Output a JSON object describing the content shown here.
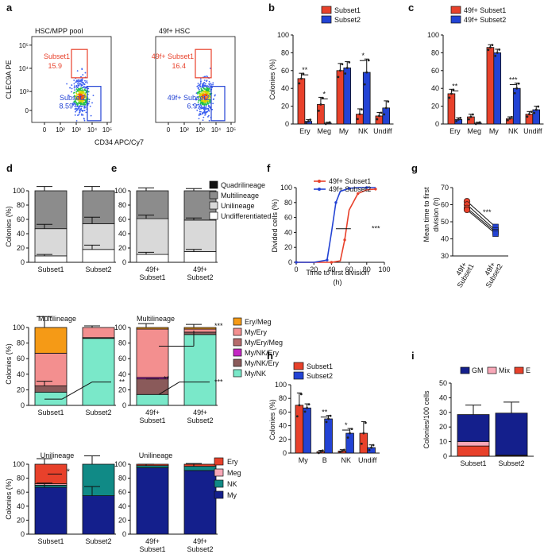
{
  "colors": {
    "red": "#e8412b",
    "blue": "#2343d4",
    "darkgray": "#8c8c8c",
    "lightgray": "#d9d9d9",
    "white": "#ffffff",
    "black": "#111111",
    "orange": "#f59a16",
    "pink": "#f38f8f",
    "mauve": "#b66b6b",
    "magenta": "#c426c4",
    "brown": "#8a5a5a",
    "mint": "#7ae8c9",
    "teal": "#108a86",
    "navy": "#141f8c",
    "lightpink": "#f8a8b8"
  },
  "chart_data": [
    {
      "panel": "a",
      "type": "scatter",
      "title": "HSC/MPP pool",
      "xlabel": "CD34 APC/Cy7",
      "ylabel": "CLEC9A PE",
      "xticks": [
        "0",
        "10²",
        "10³",
        "10⁴",
        "10⁵"
      ],
      "yticks": [
        "0",
        "10³",
        "10⁴",
        "10⁵"
      ],
      "gates": [
        {
          "name": "Subset1",
          "value": "15.9"
        },
        {
          "name": "Subset2",
          "value": "8.59"
        }
      ]
    },
    {
      "panel": "a2",
      "type": "scatter",
      "title": "49f+ HSC",
      "xticks": [
        "0",
        "10²",
        "10³",
        "10⁴",
        "10⁵"
      ],
      "gates": [
        {
          "name": "49f+ Subset1",
          "value": "16.4"
        },
        {
          "name": "49f+ Subset2",
          "value": "6.9"
        }
      ]
    },
    {
      "panel": "b",
      "type": "bar",
      "ylabel": "Colonies (%)",
      "ylim": [
        0,
        100
      ],
      "yticks": [
        0,
        20,
        40,
        60,
        80,
        100
      ],
      "categories": [
        "Ery",
        "Meg",
        "My",
        "NK",
        "Undiff"
      ],
      "series": [
        {
          "name": "Subset1",
          "values": [
            51,
            22,
            60,
            11,
            9
          ],
          "err": [
            6,
            8,
            8,
            6,
            4
          ]
        },
        {
          "name": "Subset2",
          "values": [
            3,
            1,
            63,
            58,
            18
          ],
          "err": [
            2,
            1,
            7,
            15,
            8
          ]
        }
      ],
      "significance": [
        "**",
        "*",
        "",
        "*",
        ""
      ]
    },
    {
      "panel": "c",
      "type": "bar",
      "ylabel": "",
      "ylim": [
        0,
        100
      ],
      "yticks": [
        0,
        20,
        40,
        60,
        80,
        100
      ],
      "categories": [
        "Ery",
        "Meg",
        "My",
        "NK",
        "Undiff"
      ],
      "series": [
        {
          "name": "49f+ Subset1",
          "values": [
            34,
            8,
            86,
            6,
            11
          ],
          "err": [
            5,
            3,
            3,
            2,
            3
          ]
        },
        {
          "name": "49f+ Subset2",
          "values": [
            5,
            1,
            80,
            40,
            16
          ],
          "err": [
            2,
            1,
            4,
            6,
            4
          ]
        }
      ],
      "significance": [
        "**",
        "",
        "",
        "***",
        ""
      ]
    },
    {
      "panel": "d",
      "type": "bar",
      "stacked": true,
      "ylabel": "Colonies (%)",
      "ylim": [
        0,
        100
      ],
      "yticks": [
        0,
        20,
        40,
        60,
        80,
        100
      ],
      "categories": [
        "Subset1",
        "Subset2"
      ],
      "series": [
        {
          "name": "Undifferentiated",
          "values": [
            9,
            18
          ]
        },
        {
          "name": "Unilineage",
          "values": [
            38,
            36
          ]
        },
        {
          "name": "Multilineage",
          "values": [
            53,
            46
          ]
        },
        {
          "name": "Quadrilineage",
          "values": [
            0,
            0
          ]
        }
      ]
    },
    {
      "panel": "e",
      "type": "bar",
      "stacked": true,
      "ylim": [
        0,
        100
      ],
      "yticks": [
        0,
        20,
        40,
        60,
        80,
        100
      ],
      "categories": [
        "49f+ Subset1",
        "49f+ Subset2"
      ],
      "series": [
        {
          "name": "Undifferentiated",
          "values": [
            11,
            15
          ]
        },
        {
          "name": "Unilineage",
          "values": [
            50,
            44
          ]
        },
        {
          "name": "Multilineage",
          "values": [
            39,
            41
          ]
        },
        {
          "name": "Quadrilineage",
          "values": [
            0,
            0
          ]
        }
      ],
      "legend": [
        "Quadrilineage",
        "Multilineage",
        "Unilineage",
        "Undifferentiated"
      ]
    },
    {
      "panel": "d2",
      "type": "bar",
      "stacked": true,
      "title": "Multilineage",
      "ylabel": "Colonies (%)",
      "ylim": [
        0,
        100
      ],
      "yticks": [
        0,
        20,
        40,
        60,
        80,
        100
      ],
      "categories": [
        "Subset1",
        "Subset2"
      ],
      "series": [
        {
          "name": "My/NK",
          "values": [
            17,
            86
          ]
        },
        {
          "name": "My/NK/Ery",
          "values": [
            8,
            1
          ]
        },
        {
          "name": "My/NK/Ery",
          "values": [
            0,
            0
          ]
        },
        {
          "name": "My/Ery/Meg",
          "values": [
            0,
            0
          ]
        },
        {
          "name": "My/Ery",
          "values": [
            42,
            13
          ]
        },
        {
          "name": "Ery/Meg",
          "values": [
            33,
            0
          ]
        }
      ],
      "significance": "**"
    },
    {
      "panel": "e2",
      "type": "bar",
      "stacked": true,
      "title": "Multilineage",
      "ylim": [
        0,
        100
      ],
      "yticks": [
        0,
        20,
        40,
        60,
        80,
        100
      ],
      "categories": [
        "49f+ Subset1",
        "49f+ Subset2"
      ],
      "series": [
        {
          "name": "My/NK",
          "values": [
            14,
            91
          ]
        },
        {
          "name": "My/NK/Ery",
          "values": [
            20,
            3
          ]
        },
        {
          "name": "My/NK/Ery",
          "values": [
            2,
            0
          ]
        },
        {
          "name": "My/Ery/Meg",
          "values": [
            0,
            0
          ]
        },
        {
          "name": "My/Ery",
          "values": [
            62,
            4
          ]
        },
        {
          "name": "Ery/Meg",
          "values": [
            2,
            2
          ]
        }
      ],
      "legend": [
        "Ery/Meg",
        "My/Ery",
        "My/Ery/Meg",
        "My/NK/Ery",
        "My/NK/Ery",
        "My/NK"
      ],
      "significance": [
        "***",
        "**",
        "***"
      ]
    },
    {
      "panel": "d3",
      "type": "bar",
      "stacked": true,
      "title": "Unilineage",
      "ylabel": "Colonies (%)",
      "ylim": [
        0,
        100
      ],
      "yticks": [
        0,
        20,
        40,
        60,
        80,
        100
      ],
      "categories": [
        "Subset1",
        "Subset2"
      ],
      "series": [
        {
          "name": "My",
          "values": [
            67,
            55
          ]
        },
        {
          "name": "NK",
          "values": [
            3,
            45
          ]
        },
        {
          "name": "Meg",
          "values": [
            2,
            0
          ]
        },
        {
          "name": "Ery",
          "values": [
            28,
            0
          ]
        }
      ],
      "significance": "*"
    },
    {
      "panel": "e3",
      "type": "bar",
      "stacked": true,
      "title": "Unilineage",
      "ylim": [
        0,
        100
      ],
      "yticks": [
        0,
        20,
        40,
        60,
        80,
        100
      ],
      "categories": [
        "49f+ Subset1",
        "49f+ Subset2"
      ],
      "series": [
        {
          "name": "My",
          "values": [
            95,
            91
          ]
        },
        {
          "name": "NK",
          "values": [
            3,
            6
          ]
        },
        {
          "name": "Meg",
          "values": [
            0,
            0
          ]
        },
        {
          "name": "Ery",
          "values": [
            2,
            3
          ]
        }
      ],
      "legend": [
        "Ery",
        "Meg",
        "NK",
        "My"
      ]
    },
    {
      "panel": "f",
      "type": "line",
      "xlabel": "Time to first division (h)",
      "xlabel2": "(h)",
      "ylabel": "Divided cells (%)",
      "xlim": [
        0,
        100
      ],
      "ylim": [
        0,
        100
      ],
      "xticks": [
        0,
        20,
        40,
        60,
        80,
        100
      ],
      "yticks": [
        0,
        20,
        40,
        60,
        80,
        100
      ],
      "series": [
        {
          "name": "49f+ Subset1",
          "x": [
            0,
            20,
            40,
            50,
            55,
            60,
            70,
            80,
            90
          ],
          "y": [
            0,
            0,
            0,
            2,
            30,
            70,
            92,
            97,
            98
          ]
        },
        {
          "name": "49f+ Subset2",
          "x": [
            0,
            20,
            35,
            40,
            45,
            50,
            60,
            70,
            80,
            90
          ],
          "y": [
            0,
            0,
            3,
            40,
            80,
            95,
            99,
            100,
            100,
            100
          ]
        }
      ],
      "significance": "***"
    },
    {
      "panel": "g",
      "type": "scatter",
      "ylabel": "Mean time to first division (h)",
      "ylim": [
        30,
        70
      ],
      "yticks": [
        30,
        40,
        50,
        60,
        70
      ],
      "categories": [
        "49f+ Subset1",
        "49f+ Subset2"
      ],
      "pairs": [
        [
          62,
          47
        ],
        [
          60,
          45
        ],
        [
          58,
          44
        ],
        [
          57,
          43
        ]
      ],
      "significance": "***"
    },
    {
      "panel": "h",
      "type": "bar",
      "ylabel": "Colonies (%)",
      "ylim": [
        0,
        100
      ],
      "yticks": [
        0,
        20,
        40,
        60,
        80,
        100
      ],
      "categories": [
        "My",
        "B",
        "NK",
        "Undiff"
      ],
      "series": [
        {
          "name": "Subset1",
          "values": [
            70,
            2,
            3,
            29
          ],
          "err": [
            18,
            2,
            2,
            17
          ]
        },
        {
          "name": "Subset2",
          "values": [
            66,
            50,
            29,
            8
          ],
          "err": [
            6,
            5,
            7,
            4
          ]
        }
      ],
      "significance": [
        "",
        "**",
        "*",
        ""
      ]
    },
    {
      "panel": "i",
      "type": "bar",
      "stacked": true,
      "ylabel": "Colonies/100 cells",
      "ylim": [
        0,
        50
      ],
      "yticks": [
        0,
        10,
        20,
        30,
        40,
        50
      ],
      "categories": [
        "Subset1",
        "Subset2"
      ],
      "series": [
        {
          "name": "E",
          "values": [
            7,
            0.5
          ]
        },
        {
          "name": "Mix",
          "values": [
            3,
            0.3
          ]
        },
        {
          "name": "GM",
          "values": [
            18.5,
            28.7
          ]
        }
      ],
      "err": [
        6.5,
        7.5
      ],
      "legend": [
        "GM",
        "Mix",
        "E"
      ]
    }
  ],
  "panel_letters": [
    "a",
    "b",
    "c",
    "d",
    "e",
    "f",
    "g",
    "h",
    "i"
  ]
}
